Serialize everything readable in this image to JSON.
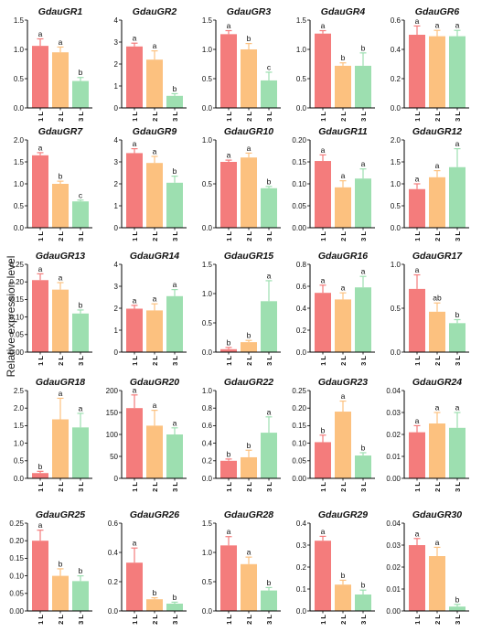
{
  "figure": {
    "ylabel": "Relative expression level",
    "colors": [
      "#f47c7c",
      "#fcc17f",
      "#9ddfb0"
    ]
  },
  "chart_data": [
    {
      "type": "bar",
      "title": "GdauGR1",
      "categories": [
        "1 L",
        "2 L",
        "3 L"
      ],
      "values": [
        1.06,
        0.95,
        0.46
      ],
      "errors": [
        0.12,
        0.09,
        0.06
      ],
      "labels": [
        "a",
        "a",
        "b"
      ],
      "ylim": [
        0,
        1.5
      ],
      "yticks": [
        "0.0",
        "0.5",
        "1.0",
        "1.5"
      ]
    },
    {
      "type": "bar",
      "title": "GdauGR2",
      "categories": [
        "1 L",
        "2 L",
        "3 L"
      ],
      "values": [
        2.8,
        2.2,
        0.55
      ],
      "errors": [
        0.15,
        0.4,
        0.1
      ],
      "labels": [
        "a",
        "a",
        "b"
      ],
      "ylim": [
        0,
        4
      ],
      "yticks": [
        "0",
        "1",
        "2",
        "3",
        "4"
      ]
    },
    {
      "type": "bar",
      "title": "GdauGR3",
      "categories": [
        "1 L",
        "2 L",
        "3 L"
      ],
      "values": [
        1.26,
        1.0,
        0.47
      ],
      "errors": [
        0.06,
        0.1,
        0.14
      ],
      "labels": [
        "a",
        "b",
        "c"
      ],
      "ylim": [
        0,
        1.5
      ],
      "yticks": [
        "0.0",
        "0.5",
        "1.0",
        "1.5"
      ]
    },
    {
      "type": "bar",
      "title": "GdauGR4",
      "categories": [
        "1 L",
        "2 L",
        "3 L"
      ],
      "values": [
        1.27,
        0.72,
        0.72
      ],
      "errors": [
        0.05,
        0.05,
        0.22
      ],
      "labels": [
        "a",
        "b",
        "b"
      ],
      "ylim": [
        0,
        1.5
      ],
      "yticks": [
        "0.0",
        "0.5",
        "1.0",
        "1.5"
      ]
    },
    {
      "type": "bar",
      "title": "GdauGR6",
      "categories": [
        "1 L",
        "2 L",
        "3 L"
      ],
      "values": [
        0.5,
        0.49,
        0.49
      ],
      "errors": [
        0.06,
        0.04,
        0.04
      ],
      "labels": [
        "a",
        "a",
        "a"
      ],
      "ylim": [
        0,
        0.6
      ],
      "yticks": [
        "0.0",
        "0.2",
        "0.4",
        "0.6"
      ]
    },
    {
      "type": "bar",
      "title": "GdauGR7",
      "categories": [
        "1 L",
        "2 L",
        "3 L"
      ],
      "values": [
        1.65,
        1.0,
        0.6
      ],
      "errors": [
        0.06,
        0.06,
        0.03
      ],
      "labels": [
        "a",
        "b",
        "c"
      ],
      "ylim": [
        0,
        2.0
      ],
      "yticks": [
        "0.0",
        "0.5",
        "1.0",
        "1.5",
        "2.0"
      ]
    },
    {
      "type": "bar",
      "title": "GdauGR9",
      "categories": [
        "1 L",
        "2 L",
        "3 L"
      ],
      "values": [
        3.4,
        2.95,
        2.05
      ],
      "errors": [
        0.2,
        0.3,
        0.3
      ],
      "labels": [
        "a",
        "a",
        "b"
      ],
      "ylim": [
        0,
        4
      ],
      "yticks": [
        "0",
        "1",
        "2",
        "3",
        "4"
      ]
    },
    {
      "type": "bar",
      "title": "GdauGR10",
      "categories": [
        "1 L",
        "2 L",
        "3 L"
      ],
      "values": [
        0.75,
        0.8,
        0.45
      ],
      "errors": [
        0.02,
        0.05,
        0.02
      ],
      "labels": [
        "a",
        "a",
        "b"
      ],
      "ylim": [
        0,
        1.0
      ],
      "yticks": [
        "0.0",
        "0.5",
        "1.0"
      ]
    },
    {
      "type": "bar",
      "title": "GdauGR11",
      "categories": [
        "1 L",
        "2 L",
        "3 L"
      ],
      "values": [
        0.152,
        0.092,
        0.112
      ],
      "errors": [
        0.014,
        0.015,
        0.022
      ],
      "labels": [
        "a",
        "a",
        "a"
      ],
      "ylim": [
        0,
        0.2
      ],
      "yticks": [
        "0.00",
        "0.05",
        "0.10",
        "0.15",
        "0.20"
      ]
    },
    {
      "type": "bar",
      "title": "GdauGR12",
      "categories": [
        "1 L",
        "2 L",
        "3 L"
      ],
      "values": [
        0.88,
        1.15,
        1.38
      ],
      "errors": [
        0.12,
        0.15,
        0.42
      ],
      "labels": [
        "a",
        "a",
        "a"
      ],
      "ylim": [
        0,
        2.0
      ],
      "yticks": [
        "0.0",
        "0.5",
        "1.0",
        "1.5",
        "2.0"
      ]
    },
    {
      "type": "bar",
      "title": "GdauGR13",
      "categories": [
        "1 L",
        "2 L",
        "3 L"
      ],
      "values": [
        0.205,
        0.178,
        0.11
      ],
      "errors": [
        0.018,
        0.02,
        0.01
      ],
      "labels": [
        "a",
        "a",
        "b"
      ],
      "ylim": [
        0,
        0.25
      ],
      "yticks": [
        "0.00",
        "0.05",
        "0.10",
        "0.15",
        "0.20",
        "0.25"
      ]
    },
    {
      "type": "bar",
      "title": "GdauGR14",
      "categories": [
        "1 L",
        "2 L",
        "3 L"
      ],
      "values": [
        1.98,
        1.9,
        2.55
      ],
      "errors": [
        0.15,
        0.3,
        0.3
      ],
      "labels": [
        "a",
        "a",
        "a"
      ],
      "ylim": [
        0,
        4
      ],
      "yticks": [
        "0",
        "1",
        "2",
        "3",
        "4"
      ]
    },
    {
      "type": "bar",
      "title": "GdauGR15",
      "categories": [
        "1 L",
        "2 L",
        "3 L"
      ],
      "values": [
        0.05,
        0.17,
        0.87
      ],
      "errors": [
        0.03,
        0.03,
        0.35
      ],
      "labels": [
        "b",
        "b",
        "a"
      ],
      "ylim": [
        0,
        1.5
      ],
      "yticks": [
        "0.0",
        "0.5",
        "1.0",
        "1.5"
      ]
    },
    {
      "type": "bar",
      "title": "GdauGR16",
      "categories": [
        "1 L",
        "2 L",
        "3 L"
      ],
      "values": [
        0.54,
        0.48,
        0.59
      ],
      "errors": [
        0.07,
        0.06,
        0.1
      ],
      "labels": [
        "a",
        "a",
        "a"
      ],
      "ylim": [
        0,
        0.8
      ],
      "yticks": [
        "0.0",
        "0.2",
        "0.4",
        "0.6",
        "0.8"
      ]
    },
    {
      "type": "bar",
      "title": "GdauGR17",
      "categories": [
        "1 L",
        "2 L",
        "3 L"
      ],
      "values": [
        0.72,
        0.46,
        0.33
      ],
      "errors": [
        0.16,
        0.1,
        0.04
      ],
      "labels": [
        "a",
        "ab",
        "b"
      ],
      "ylim": [
        0,
        1.0
      ],
      "yticks": [
        "0.0",
        "0.5",
        "1.0"
      ]
    },
    {
      "type": "bar",
      "title": "GdauGR18",
      "categories": [
        "1 L",
        "2 L",
        "3 L"
      ],
      "values": [
        0.15,
        1.68,
        1.45
      ],
      "errors": [
        0.05,
        0.6,
        0.4
      ],
      "labels": [
        "b",
        "a",
        "a"
      ],
      "ylim": [
        0,
        2.5
      ],
      "yticks": [
        "0.0",
        "0.5",
        "1.0",
        "1.5",
        "2.0",
        "2.5"
      ]
    },
    {
      "type": "bar",
      "title": "GdauGR20",
      "categories": [
        "1 L",
        "2 L",
        "3 L"
      ],
      "values": [
        160,
        120,
        100
      ],
      "errors": [
        30,
        35,
        15
      ],
      "labels": [
        "a",
        "a",
        "a"
      ],
      "ylim": [
        0,
        200
      ],
      "yticks": [
        "0",
        "50",
        "100",
        "150",
        "200"
      ]
    },
    {
      "type": "bar",
      "title": "GdauGR22",
      "categories": [
        "1 L",
        "2 L",
        "3 L"
      ],
      "values": [
        0.2,
        0.24,
        0.52
      ],
      "errors": [
        0.02,
        0.08,
        0.18
      ],
      "labels": [
        "b",
        "b",
        "a"
      ],
      "ylim": [
        0,
        1.0
      ],
      "yticks": [
        "0.0",
        "0.2",
        "0.4",
        "0.6",
        "0.8",
        "1.0"
      ]
    },
    {
      "type": "bar",
      "title": "GdauGR23",
      "categories": [
        "1 L",
        "2 L",
        "3 L"
      ],
      "values": [
        0.103,
        0.19,
        0.065
      ],
      "errors": [
        0.02,
        0.03,
        0.008
      ],
      "labels": [
        "b",
        "a",
        "b"
      ],
      "ylim": [
        0,
        0.25
      ],
      "yticks": [
        "0.00",
        "0.05",
        "0.10",
        "0.15",
        "0.20",
        "0.25"
      ]
    },
    {
      "type": "bar",
      "title": "GdauGR24",
      "categories": [
        "1 L",
        "2 L",
        "3 L"
      ],
      "values": [
        0.021,
        0.025,
        0.023
      ],
      "errors": [
        0.003,
        0.005,
        0.007
      ],
      "labels": [
        "a",
        "a",
        "a"
      ],
      "ylim": [
        0,
        0.04
      ],
      "yticks": [
        "0.00",
        "0.01",
        "0.02",
        "0.03",
        "0.04"
      ]
    },
    {
      "type": "bar",
      "title": "GdauGR25",
      "categories": [
        "1 L",
        "2 L",
        "3 L"
      ],
      "values": [
        0.2,
        0.1,
        0.085
      ],
      "errors": [
        0.03,
        0.02,
        0.015
      ],
      "labels": [
        "a",
        "b",
        "b"
      ],
      "ylim": [
        0,
        0.25
      ],
      "yticks": [
        "0.00",
        "0.05",
        "0.10",
        "0.15",
        "0.20",
        "0.25"
      ]
    },
    {
      "type": "bar",
      "title": "GdauGR26",
      "categories": [
        "1 L",
        "2 L",
        "3 L"
      ],
      "values": [
        0.33,
        0.08,
        0.05
      ],
      "errors": [
        0.1,
        0.01,
        0.01
      ],
      "labels": [
        "a",
        "b",
        "b"
      ],
      "ylim": [
        0,
        0.6
      ],
      "yticks": [
        "0.0",
        "0.2",
        "0.4",
        "0.6"
      ]
    },
    {
      "type": "bar",
      "title": "GdauGR28",
      "categories": [
        "1 L",
        "2 L",
        "3 L"
      ],
      "values": [
        1.12,
        0.8,
        0.35
      ],
      "errors": [
        0.15,
        0.12,
        0.05
      ],
      "labels": [
        "a",
        "a",
        "b"
      ],
      "ylim": [
        0,
        1.5
      ],
      "yticks": [
        "0.0",
        "0.5",
        "1.0",
        "1.5"
      ]
    },
    {
      "type": "bar",
      "title": "GdauGR29",
      "categories": [
        "1 L",
        "2 L",
        "3 L"
      ],
      "values": [
        0.32,
        0.12,
        0.075
      ],
      "errors": [
        0.02,
        0.02,
        0.02
      ],
      "labels": [
        "a",
        "b",
        "b"
      ],
      "ylim": [
        0,
        0.4
      ],
      "yticks": [
        "0.0",
        "0.1",
        "0.2",
        "0.3",
        "0.4"
      ]
    },
    {
      "type": "bar",
      "title": "GdauGR30",
      "categories": [
        "1 L",
        "2 L",
        "3 L"
      ],
      "values": [
        0.03,
        0.025,
        0.002
      ],
      "errors": [
        0.003,
        0.004,
        0.001
      ],
      "labels": [
        "a",
        "a",
        "b"
      ],
      "ylim": [
        0,
        0.04
      ],
      "yticks": [
        "0.00",
        "0.01",
        "0.02",
        "0.03",
        "0.04"
      ]
    }
  ]
}
